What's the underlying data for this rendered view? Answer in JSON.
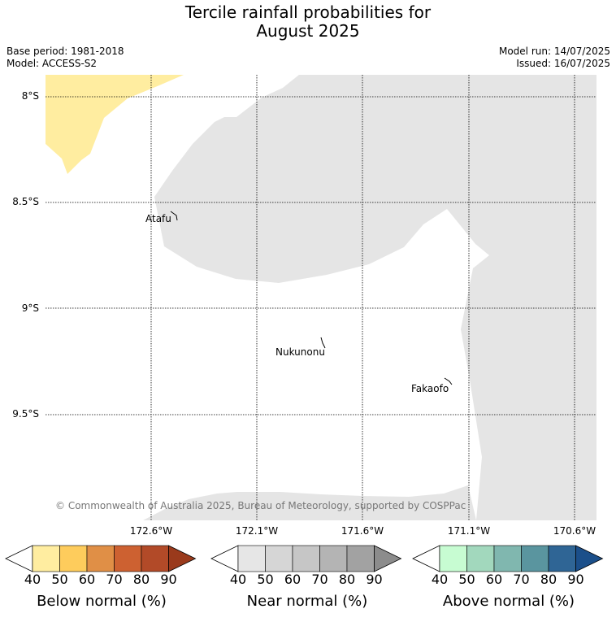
{
  "header": {
    "title_line1": "Tercile rainfall probabilities for",
    "title_line2": "August 2025",
    "base_period": "Base period: 1981-2018",
    "model": "Model: ACCESS-S2",
    "model_run": "Model run: 14/07/2025",
    "issued": "Issued: 16/07/2025"
  },
  "map": {
    "lat_labels": [
      "8°S",
      "8.5°S",
      "9°S",
      "9.5°S"
    ],
    "lon_labels": [
      "172.6°W",
      "172.1°W",
      "171.6°W",
      "171.1°W",
      "170.6°W"
    ],
    "places": [
      "Atafu",
      "Nukunonu",
      "Fakaofo"
    ],
    "copyright": "© Commonwealth of Australia 2025, Bureau of Meteorology, supported by COSPPac",
    "colors": {
      "below_normal_40_50": "#ffeda0",
      "near_normal_40_50": "#e5e5e5",
      "land": "#ffffff"
    }
  },
  "colorbars": [
    {
      "title": "Below normal (%)",
      "ticks": [
        "40",
        "50",
        "60",
        "70",
        "80",
        "90"
      ],
      "colors": [
        "#ffeda0",
        "#fecc5c",
        "#e08f46",
        "#cd6131",
        "#b24a28",
        "#9a3a1c"
      ]
    },
    {
      "title": "Near normal (%)",
      "ticks": [
        "40",
        "50",
        "60",
        "70",
        "80",
        "90"
      ],
      "colors": [
        "#e6e6e6",
        "#d6d6d6",
        "#c6c6c6",
        "#b4b4b4",
        "#a2a2a2",
        "#8c8c8c"
      ]
    },
    {
      "title": "Above normal (%)",
      "ticks": [
        "40",
        "50",
        "60",
        "70",
        "80",
        "90"
      ],
      "colors": [
        "#c7fcd2",
        "#a2d8bd",
        "#80b7af",
        "#5a959f",
        "#2f6595",
        "#1b4f8a"
      ]
    }
  ]
}
